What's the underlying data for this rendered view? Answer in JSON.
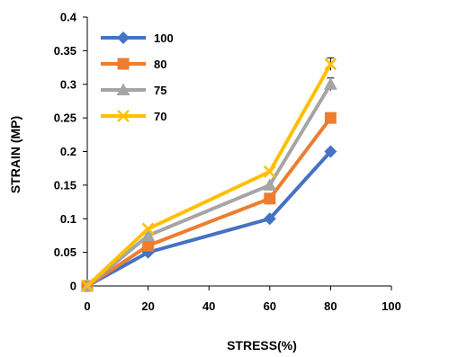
{
  "chart_data": {
    "type": "line",
    "title": "",
    "xlabel": "STRESS(%)",
    "ylabel": "STRAIN (MP)",
    "xlim": [
      0,
      100
    ],
    "ylim": [
      0,
      0.4
    ],
    "xticks": [
      0,
      20,
      40,
      60,
      80,
      100
    ],
    "yticks": [
      0,
      0.05,
      0.1,
      0.15,
      0.2,
      0.25,
      0.3,
      0.35,
      0.4
    ],
    "xtick_labels": [
      "0",
      "20",
      "40",
      "60",
      "80",
      "100"
    ],
    "ytick_labels": [
      "0",
      "0.05",
      "0.1",
      "0.15",
      "0.2",
      "0.25",
      "0.3",
      "0.35",
      "0.4"
    ],
    "grid": false,
    "legend_position": "top-left",
    "x": [
      0,
      20,
      60,
      80
    ],
    "series": [
      {
        "name": "100",
        "values": [
          0,
          0.05,
          0.1,
          0.2
        ],
        "color": "#4472C4",
        "marker": "diamond"
      },
      {
        "name": "80",
        "values": [
          0,
          0.06,
          0.13,
          0.25
        ],
        "color": "#ED7D31",
        "marker": "square"
      },
      {
        "name": "75",
        "values": [
          0,
          0.075,
          0.15,
          0.3
        ],
        "color": "#A5A5A5",
        "marker": "triangle"
      },
      {
        "name": "70",
        "values": [
          0,
          0.085,
          0.17,
          0.33
        ],
        "color": "#FFC000",
        "marker": "x"
      }
    ]
  }
}
